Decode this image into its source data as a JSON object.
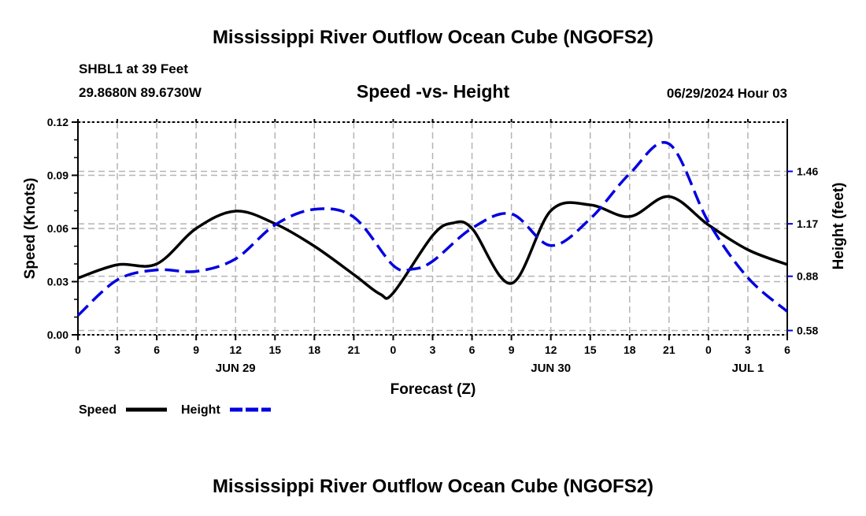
{
  "header": {
    "title": "Mississippi River Outflow Ocean Cube (NGOFS2)",
    "station": "SHBL1 at 39 Feet",
    "coords": "29.8680N  89.6730W",
    "subtitle": "Speed -vs- Height",
    "datetime": "06/29/2024 Hour 03"
  },
  "footer": {
    "title": "Mississippi River Outflow Ocean Cube (NGOFS2)"
  },
  "chart_data": {
    "type": "line",
    "title": "Speed -vs- Height",
    "xlabel": "Forecast (Z)",
    "ylabel": "Speed (Knots)",
    "y2label": "Height (feet)",
    "x_hours": [
      0,
      3,
      6,
      9,
      12,
      15,
      18,
      21,
      24,
      27,
      30,
      33,
      36,
      39,
      42,
      45,
      48,
      51,
      54
    ],
    "x_tick_labels": [
      "0",
      "3",
      "6",
      "9",
      "12",
      "15",
      "18",
      "21",
      "0",
      "3",
      "6",
      "9",
      "12",
      "15",
      "18",
      "21",
      "0",
      "3",
      "6"
    ],
    "date_labels": [
      {
        "label": "JUN 29",
        "hour": 12
      },
      {
        "label": "JUN 30",
        "hour": 36
      },
      {
        "label": "JUL 1",
        "hour": 51
      }
    ],
    "xlim": [
      0,
      54
    ],
    "ylim": [
      0,
      0.12
    ],
    "y_ticks": [
      "0.00",
      "0.03",
      "0.06",
      "0.09",
      "0.12"
    ],
    "y2lim": [
      0.5562,
      1.7325
    ],
    "y2_ticks": [
      "0.58",
      "0.88",
      "1.17",
      "1.46"
    ],
    "grid": true,
    "legend_position": "bottom-left",
    "series": [
      {
        "name": "Speed",
        "axis": "left",
        "color": "#000000",
        "style": "solid",
        "x": [
          0,
          3,
          6,
          9,
          12,
          15,
          18,
          21,
          23,
          24,
          27,
          28.5,
          30,
          33,
          36,
          39,
          42,
          45,
          48,
          51,
          54
        ],
        "values": [
          0.032,
          0.0395,
          0.04,
          0.06,
          0.0698,
          0.0627,
          0.05,
          0.034,
          0.023,
          0.0236,
          0.056,
          0.063,
          0.06,
          0.029,
          0.07,
          0.0733,
          0.0667,
          0.078,
          0.062,
          0.048,
          0.0396
        ]
      },
      {
        "name": "Height",
        "axis": "right",
        "color": "#0000e0",
        "style": "dashed",
        "x": [
          0,
          3,
          6,
          9,
          12,
          15,
          18,
          21,
          24,
          25.5,
          27,
          30,
          33,
          36,
          39,
          42,
          45,
          48,
          51,
          54
        ],
        "values": [
          0.663,
          0.86,
          0.915,
          0.907,
          0.976,
          1.164,
          1.25,
          1.207,
          0.94,
          0.92,
          0.963,
          1.146,
          1.225,
          1.05,
          1.198,
          1.447,
          1.612,
          1.18,
          0.872,
          0.685
        ]
      }
    ]
  }
}
